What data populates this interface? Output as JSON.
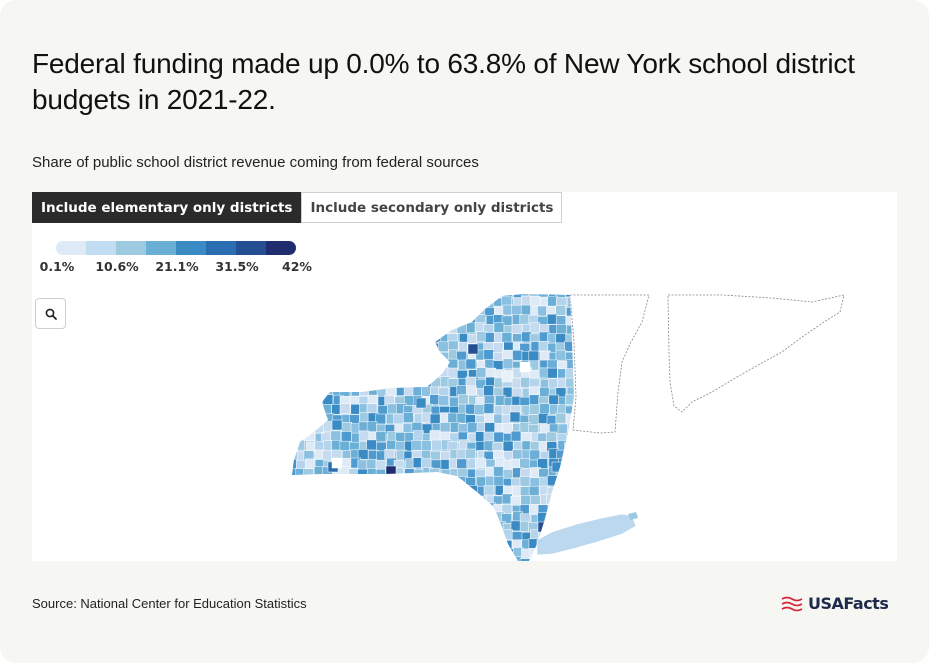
{
  "title": "Federal funding made up 0.0% to 63.8% of New York school district budgets in 2021-22.",
  "subtitle": "Share of public school district revenue coming from federal sources",
  "tabs": [
    {
      "label": "Include elementary only districts",
      "active": true
    },
    {
      "label": "Include secondary only districts",
      "active": false
    }
  ],
  "legend": {
    "colors": [
      "#deebf7",
      "#c2dcf1",
      "#9ecae1",
      "#6baed6",
      "#3a8ac4",
      "#2a6db0",
      "#244f93",
      "#1f2d6e"
    ],
    "labels": [
      "0.1%",
      "10.6%",
      "21.1%",
      "31.5%",
      "42%"
    ]
  },
  "search": {
    "icon": "magnifier-icon"
  },
  "source": "Source: National Center for Education Statistics",
  "logo": {
    "text": "USAFacts",
    "icon": "usafacts-flag-icon"
  }
}
